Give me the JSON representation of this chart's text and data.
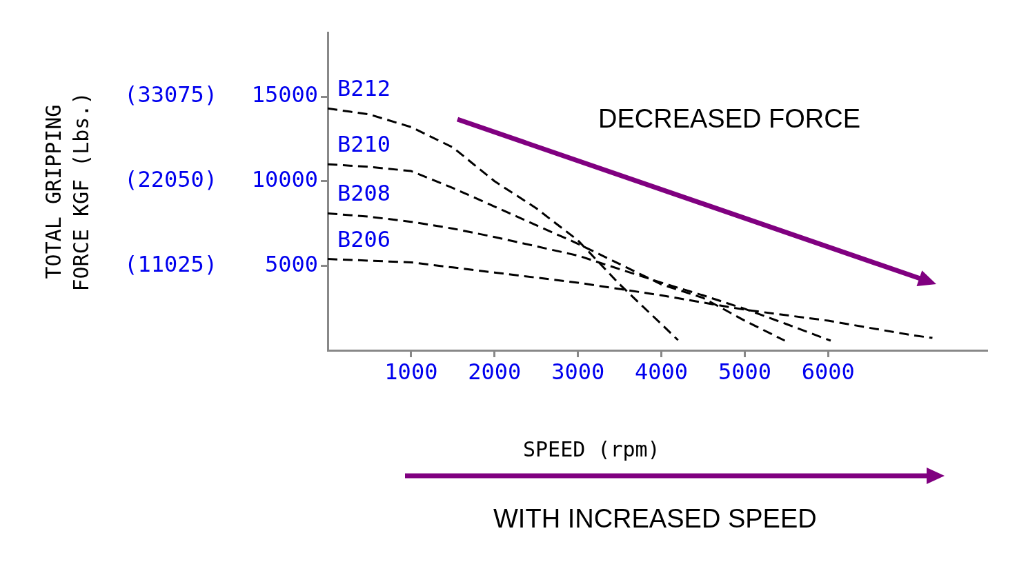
{
  "chart_data": {
    "type": "line",
    "xlabel": "SPEED (rpm)",
    "y2label": "TOTAL GRIPPING\nFORCE KGF (Lbs.)",
    "annotations": [
      "DECREASED FORCE",
      "WITH INCREASED SPEED"
    ],
    "xlim": [
      0,
      7900
    ],
    "xticks": [
      1000,
      2000,
      3000,
      4000,
      5000,
      6000
    ],
    "ylim": [
      0,
      18800
    ],
    "yticks": [
      5000,
      10000,
      15000
    ],
    "y2lim": [
      0,
      41454
    ],
    "y2ticks": [
      {
        "value": 11025,
        "label": "(11025)"
      },
      {
        "value": 22050,
        "label": "(22050)"
      },
      {
        "value": 33075,
        "label": "(33075)"
      }
    ],
    "grid": false,
    "legend": false,
    "marker": "none",
    "line_style": "dashed",
    "series": [
      {
        "name": "B212",
        "color": "#000000",
        "x": [
          0,
          500,
          1000,
          1500,
          2000,
          2500,
          3000,
          3500,
          4000,
          4200
        ],
        "values": [
          14300,
          13950,
          13200,
          12000,
          10000,
          8400,
          6500,
          3900,
          1550,
          600
        ]
      },
      {
        "name": "B210",
        "color": "#000000",
        "x": [
          0,
          500,
          1000,
          1500,
          2000,
          3000,
          4000,
          4500,
          5000,
          5480
        ],
        "values": [
          11000,
          10850,
          10600,
          9600,
          8500,
          6300,
          3900,
          3100,
          1750,
          570
        ]
      },
      {
        "name": "B208",
        "color": "#000000",
        "x": [
          0,
          500,
          1000,
          1500,
          2000,
          3000,
          4000,
          4500,
          5000,
          5500,
          6030
        ],
        "values": [
          8100,
          7900,
          7600,
          7200,
          6700,
          5600,
          4000,
          3250,
          2450,
          1550,
          570
        ]
      },
      {
        "name": "B206",
        "color": "#000000",
        "x": [
          0,
          500,
          1000,
          1500,
          2000,
          3000,
          4000,
          5000,
          6000,
          7000,
          7250
        ],
        "values": [
          5400,
          5300,
          5200,
          4900,
          4600,
          4000,
          3250,
          2400,
          1750,
          900,
          730
        ]
      }
    ]
  }
}
